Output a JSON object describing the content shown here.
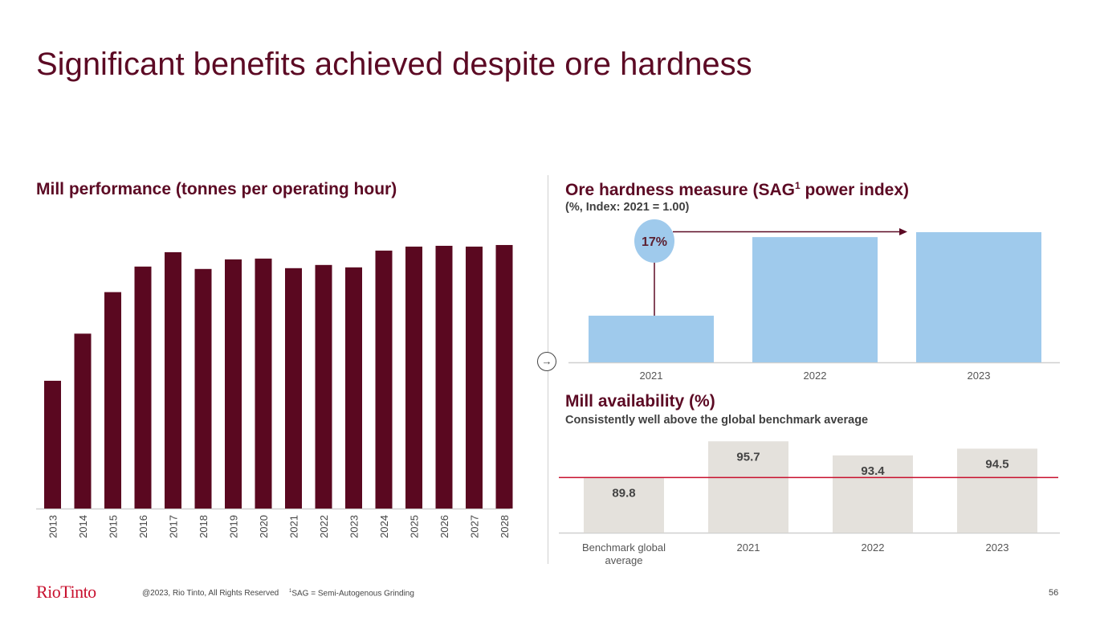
{
  "title": "Significant benefits achieved despite ore hardness",
  "colors": {
    "brand": "#5c0a24",
    "bar_dark": "#5a0820",
    "bar_blue": "#9fcaec",
    "bar_grey": "#e4e1dc",
    "benchmark_line": "#c8102e"
  },
  "chart_data": [
    {
      "type": "bar",
      "title": "Mill performance (tonnes per operating hour)",
      "xlabel": "",
      "ylabel": "",
      "categories": [
        "2013",
        "2014",
        "2015",
        "2016",
        "2017",
        "2018",
        "2019",
        "2020",
        "2021",
        "2022",
        "2023",
        "2024",
        "2025",
        "2026",
        "2027",
        "2028"
      ],
      "values": [
        160,
        219,
        271,
        303,
        321,
        300,
        312,
        313,
        301,
        305,
        302,
        323,
        328,
        329,
        328,
        330
      ],
      "values_note": "relative scale, no axis values shown",
      "ylim": [
        0,
        335
      ],
      "grid": false
    },
    {
      "type": "bar",
      "title": "Ore hardness measure (SAG1 power index)",
      "title_main": "Ore hardness measure (SAG",
      "title_sup": "1",
      "title_end": " power index)",
      "subtitle": "(%, Index: 2021 = 1.00)",
      "categories": [
        "2021",
        "2022",
        "2023"
      ],
      "values": [
        1.0,
        1.16,
        1.17
      ],
      "ylim": [
        0.905,
        1.2
      ],
      "annotation": "17%",
      "grid": false
    },
    {
      "type": "bar",
      "title": "Mill availability (%)",
      "subtitle": "Consistently well above the global benchmark average",
      "categories": [
        "Benchmark global average",
        "2021",
        "2022",
        "2023"
      ],
      "category_lines": [
        [
          "Benchmark global",
          "average"
        ],
        [
          "2021"
        ],
        [
          "2022"
        ],
        [
          "2023"
        ]
      ],
      "values": [
        89.8,
        95.7,
        93.4,
        94.5
      ],
      "labels": [
        "89.8",
        "95.7",
        "93.4",
        "94.5"
      ],
      "reference_line": 89.8,
      "ylim": [
        80.8,
        97
      ],
      "grid": false
    }
  ],
  "footer": {
    "logo": "RioTinto",
    "copyright": "@2023, Rio Tinto, All Rights Reserved",
    "footnote_sup": "1",
    "footnote": "SAG = Semi-Autogenous Grinding",
    "page_number": "56"
  }
}
